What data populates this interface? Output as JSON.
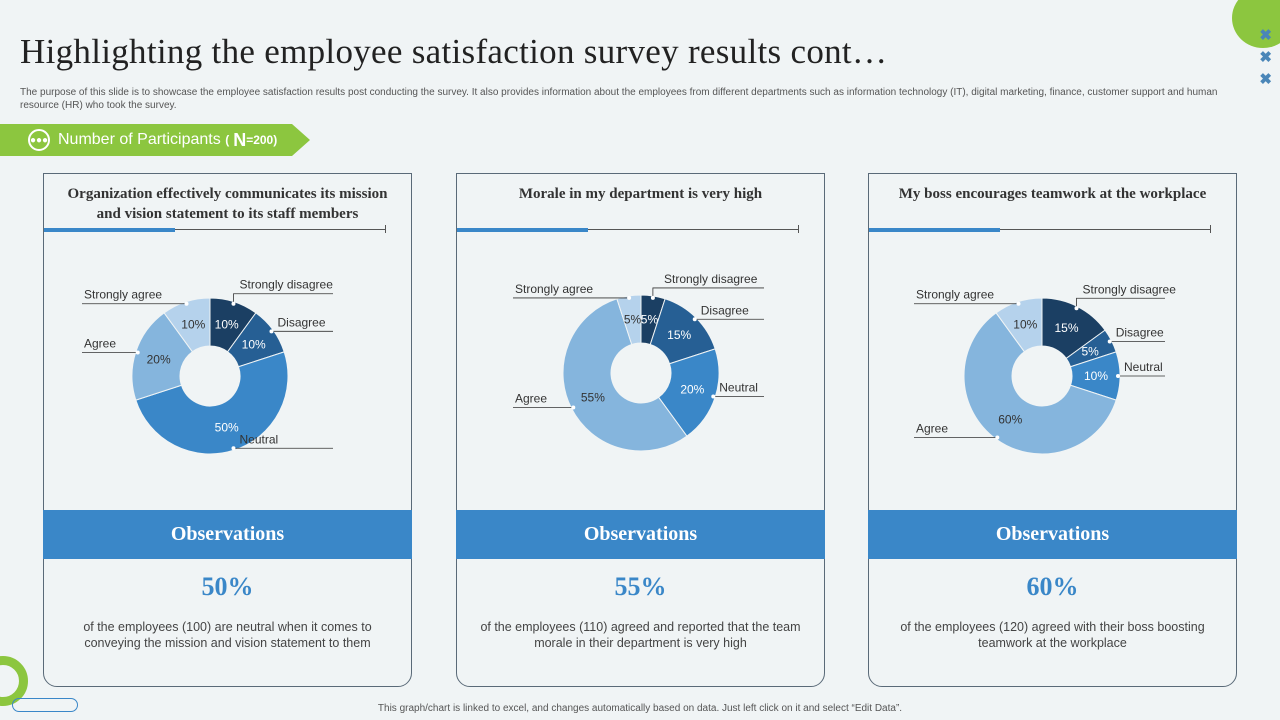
{
  "title": "Highlighting the employee satisfaction survey results cont…",
  "description": "The purpose of this slide is to showcase the employee satisfaction results post conducting the survey. It also provides information about the employees from different departments such as information technology (IT), digital marketing, finance, customer support and human resource (HR) who took the survey.",
  "banner": {
    "label": "Number of Participants",
    "n_prefix": "(",
    "n_letter": "N",
    "n_value": "=200)",
    "icon": "people-group-icon"
  },
  "footer": "This graph/chart is linked to excel, and changes automatically based on data. Just left click on it and select “Edit Data”.",
  "colors": {
    "accent_green": "#8cc63f",
    "accent_blue": "#3a87c8",
    "strongly_disagree": "#1b3f63",
    "disagree": "#265f94",
    "neutral": "#3a87c8",
    "agree": "#85b5dd",
    "strongly_agree": "#b5d2ec"
  },
  "cards": [
    {
      "question": "Organization  effectively communicates its mission and vision statement to its staff members",
      "obs_label": "Observations",
      "obs_pct": "50%",
      "obs_text": "of the employees (100) are neutral when it comes to conveying the mission and vision statement to them"
    },
    {
      "question": "Morale in my department is very high",
      "obs_label": "Observations",
      "obs_pct": "55%",
      "obs_text": "of the employees (110) agreed and reported that the team morale in their department is very high"
    },
    {
      "question": "My boss encourages  teamwork at the workplace",
      "obs_label": "Observations",
      "obs_pct": "60%",
      "obs_text": "of the employees (120) agreed with their boss boosting teamwork at the workplace"
    }
  ],
  "chart_data": [
    {
      "type": "pie",
      "donut": true,
      "categories": [
        "Strongly disagree",
        "Disagree",
        "Neutral",
        "Agree",
        "Strongly agree"
      ],
      "values": [
        10,
        10,
        50,
        20,
        10
      ],
      "data_labels": [
        "10%",
        "10%",
        "50%",
        "20%",
        "10%"
      ]
    },
    {
      "type": "pie",
      "donut": true,
      "categories": [
        "Strongly disagree",
        "Disagree",
        "Neutral",
        "Agree",
        "Strongly agree"
      ],
      "values": [
        5,
        15,
        20,
        55,
        5
      ],
      "data_labels": [
        "5%",
        "15%",
        "20%",
        "55%",
        "5%"
      ]
    },
    {
      "type": "pie",
      "donut": true,
      "categories": [
        "Strongly disagree",
        "Disagree",
        "Neutral",
        "Agree",
        "Strongly agree"
      ],
      "values": [
        15,
        5,
        10,
        60,
        10
      ],
      "data_labels": [
        "15%",
        "5%",
        "10%",
        "60%",
        "10%"
      ]
    }
  ]
}
